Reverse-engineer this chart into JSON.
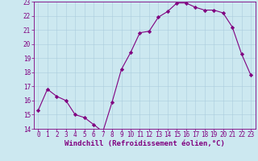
{
  "x": [
    0,
    1,
    2,
    3,
    4,
    5,
    6,
    7,
    8,
    9,
    10,
    11,
    12,
    13,
    14,
    15,
    16,
    17,
    18,
    19,
    20,
    21,
    22,
    23
  ],
  "y": [
    15.3,
    16.8,
    16.3,
    16.0,
    15.0,
    14.8,
    14.3,
    13.8,
    15.9,
    18.2,
    19.4,
    20.8,
    20.9,
    21.9,
    22.3,
    22.9,
    22.9,
    22.6,
    22.4,
    22.4,
    22.2,
    21.2,
    19.3,
    17.8
  ],
  "line_color": "#800080",
  "marker": "D",
  "marker_size": 2.2,
  "bg_color": "#cce8f0",
  "grid_color": "#aaccdd",
  "xlabel": "Windchill (Refroidissement éolien,°C)",
  "ylim": [
    14,
    23
  ],
  "xlim": [
    -0.5,
    23.5
  ],
  "yticks": [
    14,
    15,
    16,
    17,
    18,
    19,
    20,
    21,
    22,
    23
  ],
  "xticks": [
    0,
    1,
    2,
    3,
    4,
    5,
    6,
    7,
    8,
    9,
    10,
    11,
    12,
    13,
    14,
    15,
    16,
    17,
    18,
    19,
    20,
    21,
    22,
    23
  ],
  "tick_color": "#800080",
  "xlabel_color": "#800080",
  "tick_labelsize": 5.5,
  "xlabel_fontsize": 6.5,
  "spine_color": "#800080",
  "linewidth": 0.8
}
